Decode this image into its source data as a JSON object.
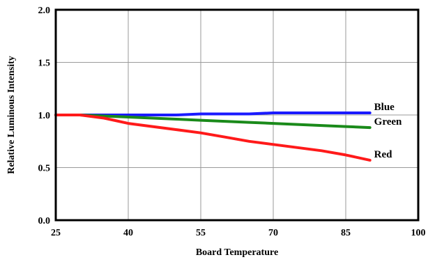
{
  "chart_data": {
    "type": "line",
    "title": "",
    "xlabel": "Board Temperature",
    "ylabel": "Relative Luminous Intensity",
    "xlim": [
      25,
      100
    ],
    "ylim": [
      0.0,
      2.0
    ],
    "x_ticks": [
      25,
      40,
      55,
      70,
      85,
      100
    ],
    "x_tick_labels": [
      "25",
      "40",
      "55",
      "70",
      "85",
      "100"
    ],
    "y_ticks": [
      0.0,
      0.5,
      1.0,
      1.5,
      2.0
    ],
    "y_tick_labels": [
      "0.0",
      "0.5",
      "1.0",
      "1.5",
      "2.0"
    ],
    "grid": true,
    "legend": "inline labels at right end of lines",
    "series": [
      {
        "name": "Blue",
        "color": "#1a1aff",
        "x": [
          25,
          30,
          35,
          40,
          45,
          50,
          55,
          60,
          65,
          70,
          75,
          80,
          85,
          90
        ],
        "y": [
          1.0,
          1.0,
          1.0,
          1.0,
          1.0,
          1.0,
          1.01,
          1.01,
          1.01,
          1.02,
          1.02,
          1.02,
          1.02,
          1.02
        ]
      },
      {
        "name": "Green",
        "color": "#1a8a1a",
        "x": [
          25,
          30,
          35,
          40,
          45,
          50,
          55,
          60,
          65,
          70,
          75,
          80,
          85,
          90
        ],
        "y": [
          1.0,
          1.0,
          0.99,
          0.98,
          0.97,
          0.96,
          0.95,
          0.94,
          0.93,
          0.92,
          0.91,
          0.9,
          0.89,
          0.88
        ]
      },
      {
        "name": "Red",
        "color": "#ff1a1a",
        "x": [
          25,
          30,
          35,
          40,
          45,
          50,
          55,
          60,
          65,
          70,
          75,
          80,
          85,
          90
        ],
        "y": [
          1.0,
          1.0,
          0.97,
          0.92,
          0.89,
          0.86,
          0.83,
          0.79,
          0.75,
          0.72,
          0.69,
          0.66,
          0.62,
          0.57
        ]
      }
    ]
  }
}
